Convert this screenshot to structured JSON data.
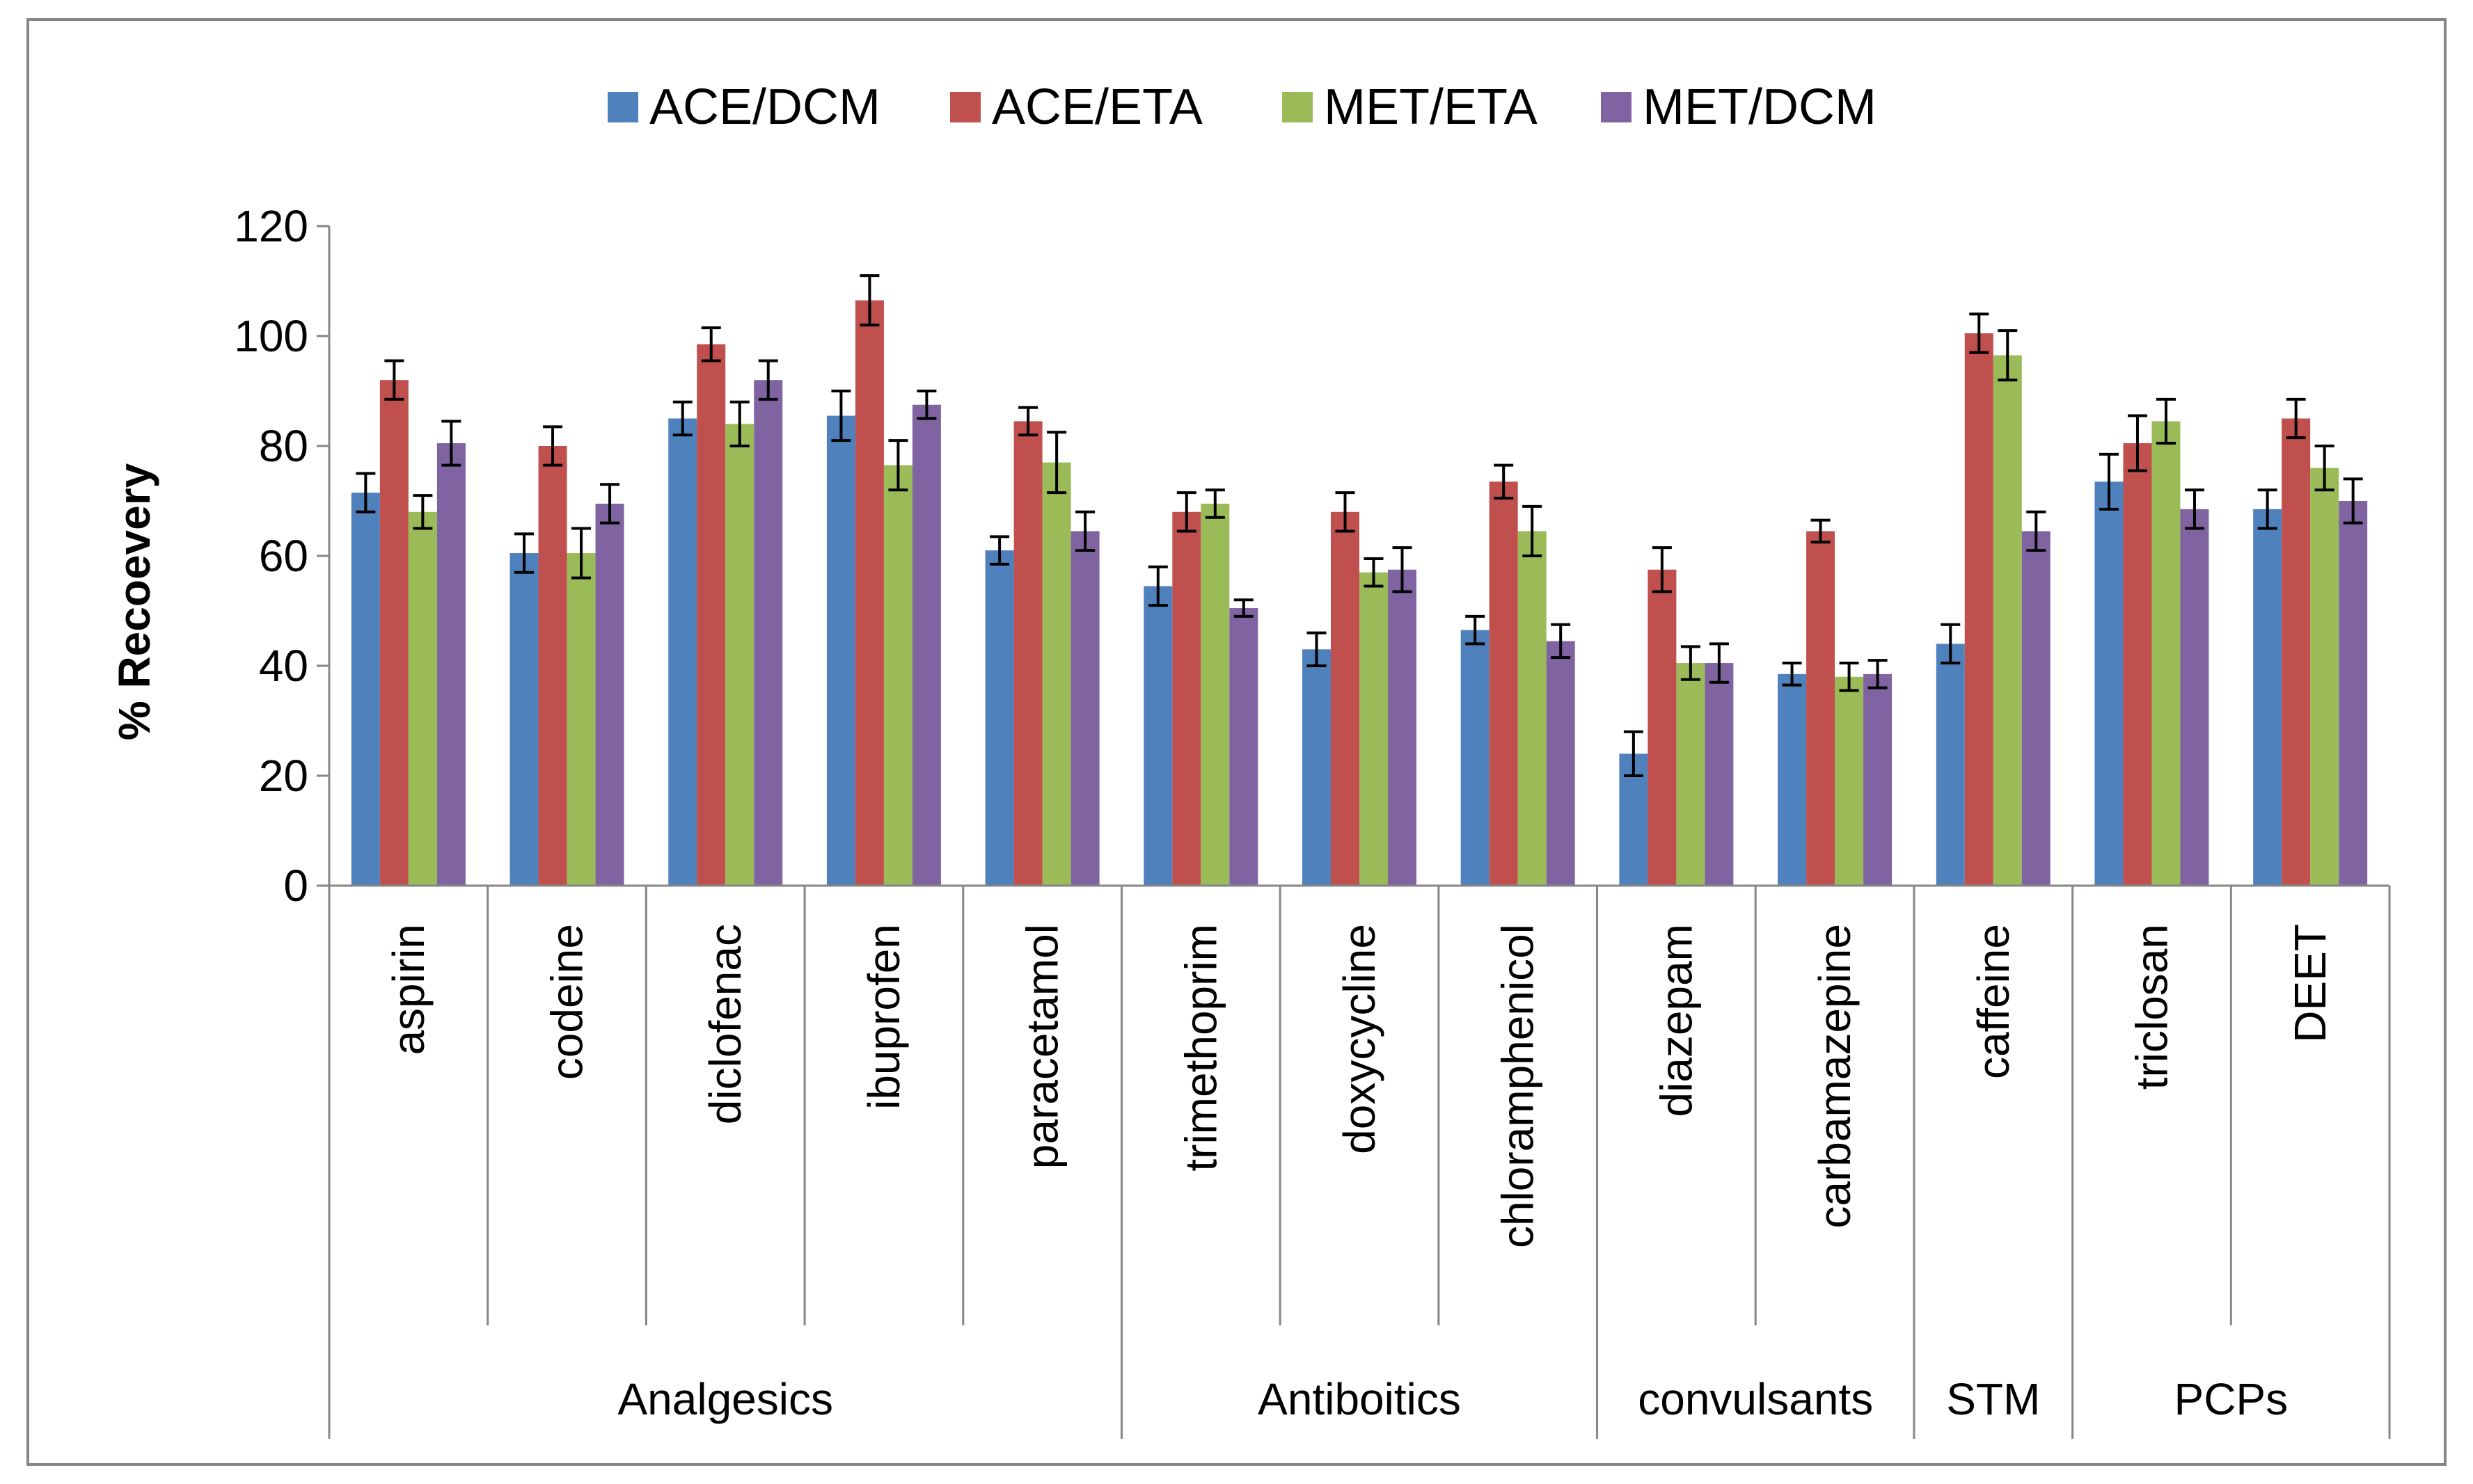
{
  "chart_data": {
    "type": "bar",
    "title": "",
    "xlabel": "",
    "ylabel": "% Recoevery",
    "ylim": [
      0,
      120
    ],
    "yticks": [
      0,
      20,
      40,
      60,
      80,
      100,
      120
    ],
    "grid": false,
    "legend_position": "top-center",
    "categories": [
      "aspirin",
      "codeine",
      "diclofenac",
      "ibuprofen",
      "paracetamol",
      "trimethoprim",
      "doxycycline",
      "chloramphenicol",
      "diazepam",
      "carbamazepine",
      "caffeine",
      "triclosan",
      "DEET"
    ],
    "groups": [
      {
        "label": "Analgesics",
        "count": 5
      },
      {
        "label": "Antiboitics",
        "count": 3
      },
      {
        "label": "convulsants",
        "count": 2
      },
      {
        "label": "STM",
        "count": 1
      },
      {
        "label": "PCPs",
        "count": 2
      }
    ],
    "series": [
      {
        "name": "ACE/DCM",
        "color": "#4F81BD",
        "values": [
          71.5,
          60.5,
          85,
          85.5,
          61,
          54.5,
          43,
          46.5,
          24,
          38.5,
          44,
          73.5,
          68.5
        ],
        "errors": [
          3.5,
          3.5,
          3,
          4.5,
          2.5,
          3.5,
          3,
          2.5,
          4,
          2,
          3.5,
          5,
          3.5
        ]
      },
      {
        "name": "ACE/ETA",
        "color": "#C0504D",
        "values": [
          92,
          80,
          98.5,
          106.5,
          84.5,
          68,
          68,
          73.5,
          57.5,
          64.5,
          100.5,
          80.5,
          85
        ],
        "errors": [
          3.5,
          3.5,
          3,
          4.5,
          2.5,
          3.5,
          3.5,
          3,
          4,
          2,
          3.5,
          5,
          3.5
        ]
      },
      {
        "name": "MET/ETA",
        "color": "#9BBB59",
        "values": [
          68,
          60.5,
          84,
          76.5,
          77,
          69.5,
          57,
          64.5,
          40.5,
          38,
          96.5,
          84.5,
          76
        ],
        "errors": [
          3,
          4.5,
          4,
          4.5,
          5.5,
          2.5,
          2.5,
          4.5,
          3,
          2.5,
          4.5,
          4,
          4
        ]
      },
      {
        "name": "MET/DCM",
        "color": "#8064A2",
        "values": [
          80.5,
          69.5,
          92,
          87.5,
          64.5,
          50.5,
          57.5,
          44.5,
          40.5,
          38.5,
          64.5,
          68.5,
          70
        ],
        "errors": [
          4,
          3.5,
          3.5,
          2.5,
          3.5,
          1.5,
          4,
          3,
          3.5,
          2.5,
          3.5,
          3.5,
          4
        ]
      }
    ]
  }
}
